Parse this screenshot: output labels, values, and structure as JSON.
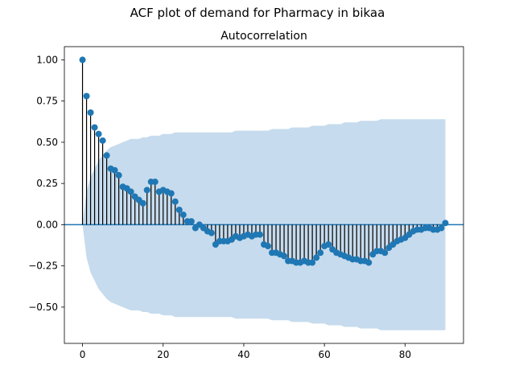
{
  "figure": {
    "suptitle": "ACF plot of demand for Pharmacy in bikaa"
  },
  "chart_data": {
    "type": "scatter",
    "title": "Autocorrelation",
    "xlabel": "",
    "ylabel": "",
    "xlim": [
      -4.5,
      94.5
    ],
    "ylim": [
      -0.72,
      1.08
    ],
    "xticks": [
      0,
      20,
      40,
      60,
      80
    ],
    "yticks": [
      -0.5,
      -0.25,
      0.0,
      0.25,
      0.5,
      0.75,
      1.0
    ],
    "grid": false,
    "colors": {
      "markers": "#1f77b4",
      "stems": "#000000",
      "band": "#c6dbed",
      "zero_line": "#1f77b4"
    },
    "lags": [
      0,
      1,
      2,
      3,
      4,
      5,
      6,
      7,
      8,
      9,
      10,
      11,
      12,
      13,
      14,
      15,
      16,
      17,
      18,
      19,
      20,
      21,
      22,
      23,
      24,
      25,
      26,
      27,
      28,
      29,
      30,
      31,
      32,
      33,
      34,
      35,
      36,
      37,
      38,
      39,
      40,
      41,
      42,
      43,
      44,
      45,
      46,
      47,
      48,
      49,
      50,
      51,
      52,
      53,
      54,
      55,
      56,
      57,
      58,
      59,
      60,
      61,
      62,
      63,
      64,
      65,
      66,
      67,
      68,
      69,
      70,
      71,
      72,
      73,
      74,
      75,
      76,
      77,
      78,
      79,
      80,
      81,
      82,
      83,
      84,
      85,
      86,
      87,
      88,
      89,
      90
    ],
    "acf": [
      1.0,
      0.78,
      0.68,
      0.59,
      0.55,
      0.51,
      0.42,
      0.34,
      0.33,
      0.3,
      0.23,
      0.22,
      0.2,
      0.17,
      0.15,
      0.13,
      0.21,
      0.26,
      0.26,
      0.2,
      0.21,
      0.2,
      0.19,
      0.14,
      0.09,
      0.06,
      0.02,
      0.02,
      -0.02,
      0.0,
      -0.02,
      -0.04,
      -0.05,
      -0.12,
      -0.1,
      -0.1,
      -0.1,
      -0.09,
      -0.07,
      -0.08,
      -0.07,
      -0.06,
      -0.07,
      -0.06,
      -0.06,
      -0.12,
      -0.13,
      -0.17,
      -0.17,
      -0.18,
      -0.19,
      -0.22,
      -0.22,
      -0.23,
      -0.23,
      -0.22,
      -0.23,
      -0.23,
      -0.2,
      -0.17,
      -0.13,
      -0.12,
      -0.15,
      -0.17,
      -0.18,
      -0.19,
      -0.2,
      -0.21,
      -0.21,
      -0.22,
      -0.22,
      -0.23,
      -0.18,
      -0.16,
      -0.16,
      -0.17,
      -0.14,
      -0.12,
      -0.1,
      -0.09,
      -0.08,
      -0.06,
      -0.04,
      -0.03,
      -0.03,
      -0.02,
      -0.02,
      -0.03,
      -0.03,
      -0.02,
      0.01
    ],
    "conf_upper": [
      0.0,
      0.2,
      0.29,
      0.34,
      0.39,
      0.42,
      0.45,
      0.47,
      0.48,
      0.49,
      0.5,
      0.51,
      0.52,
      0.52,
      0.52,
      0.53,
      0.53,
      0.54,
      0.54,
      0.54,
      0.55,
      0.55,
      0.55,
      0.56,
      0.56,
      0.56,
      0.56,
      0.56,
      0.56,
      0.56,
      0.56,
      0.56,
      0.56,
      0.56,
      0.56,
      0.56,
      0.56,
      0.56,
      0.57,
      0.57,
      0.57,
      0.57,
      0.57,
      0.57,
      0.57,
      0.57,
      0.57,
      0.58,
      0.58,
      0.58,
      0.58,
      0.58,
      0.59,
      0.59,
      0.59,
      0.59,
      0.59,
      0.6,
      0.6,
      0.6,
      0.6,
      0.61,
      0.61,
      0.61,
      0.61,
      0.62,
      0.62,
      0.62,
      0.62,
      0.63,
      0.63,
      0.63,
      0.63,
      0.63,
      0.64,
      0.64,
      0.64,
      0.64,
      0.64,
      0.64,
      0.64,
      0.64,
      0.64,
      0.64,
      0.64,
      0.64,
      0.64,
      0.64,
      0.64,
      0.64,
      0.64
    ]
  }
}
